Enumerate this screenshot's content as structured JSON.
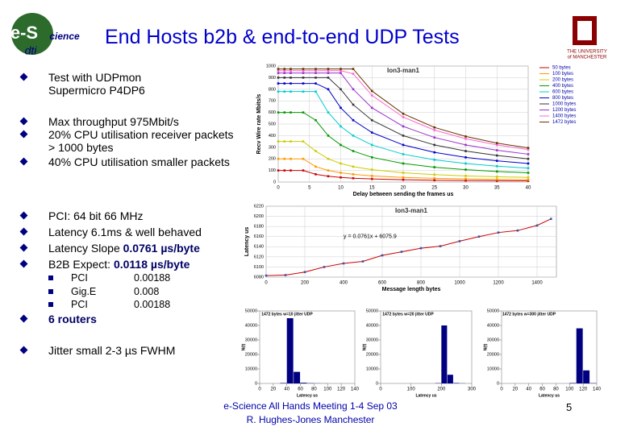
{
  "header": {
    "title": "End Hosts b2b & end-to-end UDP Tests",
    "logo_left": {
      "main": "e-S",
      "sub": "cience",
      "org": "dti"
    },
    "logo_right": [
      "THE UNIVERSITY",
      "of MANCHESTER"
    ]
  },
  "bullets": [
    {
      "parts": [
        {
          "text": "Test with UDPmon"
        },
        {
          "text": "Supermicro P4DP6",
          "break": true
        }
      ]
    },
    {
      "parts": [
        {
          "text": "Max throughput 975Mbit/s"
        }
      ]
    },
    {
      "parts": [
        {
          "text": "20% CPU utilisation receiver packets > 1000 bytes"
        }
      ]
    },
    {
      "parts": [
        {
          "text": "40% CPU utilisation smaller packets"
        }
      ]
    },
    {
      "parts": [
        {
          "text": "PCI: 64 bit 66 MHz"
        }
      ]
    },
    {
      "parts": [
        {
          "text": "Latency 6.1ms & well behaved"
        }
      ]
    },
    {
      "parts": [
        {
          "text": "Latency Slope "
        },
        {
          "text": "0.0761 µs/byte",
          "bold": true
        }
      ]
    },
    {
      "parts": [
        {
          "text": "B2B Expect: "
        },
        {
          "text": "0.0118 µs/byte",
          "bold": true
        }
      ]
    },
    {
      "parts": [
        {
          "text": "6 routers",
          "bold": true
        }
      ]
    },
    {
      "parts": [
        {
          "text": "Jitter small 2-3 µs FWHM"
        }
      ]
    }
  ],
  "sub_bullets": [
    {
      "label": "PCI",
      "value": 0.00188
    },
    {
      "label": "Gig.E",
      "value": 0.008
    },
    {
      "label": "PCI",
      "value": 0.00188
    }
  ],
  "footer": {
    "lines": [
      "e-Science All Hands Meeting 1-4 Sep 03",
      "R. Hughes-Jones  Manchester"
    ],
    "page": 5
  },
  "chart_data": [
    {
      "type": "line",
      "title": "Ion3-man1",
      "x_label": "Delay between sending the frames us",
      "y_label": "Recv Wire rate Mbits/s",
      "x": [
        0,
        1,
        2,
        4,
        6,
        8,
        10,
        12,
        15,
        20,
        25,
        30,
        35,
        40
      ],
      "xlim": [
        0,
        40
      ],
      "xticks": [
        0,
        5,
        10,
        15,
        20,
        25,
        30,
        35,
        40
      ],
      "ylim": [
        0,
        1000
      ],
      "yticks": [
        0,
        100,
        200,
        300,
        400,
        500,
        600,
        700,
        800,
        900,
        1000
      ],
      "grid": true,
      "legend": "right",
      "series": [
        {
          "name": "50 bytes",
          "color": "#cc0000",
          "values": [
            100,
            100,
            100,
            100,
            67,
            50,
            40,
            33,
            27,
            20,
            16,
            13,
            11,
            10
          ]
        },
        {
          "name": "100 bytes",
          "color": "#ff9900",
          "values": [
            200,
            200,
            200,
            200,
            133,
            100,
            80,
            67,
            53,
            40,
            32,
            27,
            23,
            20
          ]
        },
        {
          "name": "200 bytes",
          "color": "#cccc00",
          "values": [
            350,
            350,
            350,
            350,
            267,
            200,
            160,
            133,
            107,
            80,
            64,
            53,
            46,
            40
          ]
        },
        {
          "name": "400 bytes",
          "color": "#009900",
          "values": [
            600,
            600,
            600,
            600,
            533,
            400,
            320,
            267,
            213,
            160,
            128,
            107,
            91,
            80
          ]
        },
        {
          "name": "600 bytes",
          "color": "#00cccc",
          "values": [
            780,
            780,
            780,
            780,
            780,
            600,
            480,
            400,
            320,
            240,
            192,
            160,
            137,
            120
          ]
        },
        {
          "name": "800 bytes",
          "color": "#0000cc",
          "values": [
            850,
            850,
            850,
            850,
            850,
            800,
            640,
            533,
            427,
            320,
            256,
            213,
            183,
            160
          ]
        },
        {
          "name": "1000 bytes",
          "color": "#333333",
          "values": [
            900,
            900,
            900,
            900,
            900,
            900,
            800,
            667,
            533,
            400,
            320,
            267,
            229,
            200
          ]
        },
        {
          "name": "1200 bytes",
          "color": "#9933cc",
          "values": [
            940,
            940,
            940,
            940,
            940,
            940,
            940,
            800,
            640,
            480,
            384,
            320,
            274,
            240
          ]
        },
        {
          "name": "1400 bytes",
          "color": "#ff66cc",
          "values": [
            960,
            960,
            960,
            960,
            960,
            960,
            960,
            933,
            747,
            560,
            448,
            373,
            320,
            280
          ]
        },
        {
          "name": "1472 bytes",
          "color": "#663300",
          "values": [
            975,
            975,
            975,
            975,
            975,
            975,
            975,
            975,
            785,
            589,
            471,
            393,
            336,
            294
          ]
        }
      ]
    },
    {
      "type": "line",
      "title": "Ion3-man1",
      "x_label": "Message length bytes",
      "y_label": "Latency us",
      "annotation": "y = 0.0761x + 6075.9",
      "x": [
        0,
        100,
        200,
        300,
        400,
        500,
        600,
        700,
        800,
        900,
        1000,
        1100,
        1200,
        1300,
        1400,
        1472
      ],
      "xlim": [
        0,
        1500
      ],
      "xticks": [
        0,
        200,
        400,
        600,
        800,
        1000,
        1200,
        1400
      ],
      "ylim": [
        6080,
        6220
      ],
      "yticks": [
        6080,
        6100,
        6120,
        6140,
        6160,
        6180,
        6200,
        6220
      ],
      "grid": true,
      "series": [
        {
          "color": "#cc0000",
          "values": [
            6083,
            6084,
            6090,
            6100,
            6107,
            6111,
            6123,
            6130,
            6137,
            6141,
            6151,
            6160,
            6168,
            6172,
            6182,
            6195
          ]
        }
      ]
    },
    {
      "type": "histogram",
      "title": "1472 bytes w=10 jitter UDP",
      "x_label": "Latency us",
      "y_label": "N(t)",
      "color": "#000080",
      "bins": [
        0,
        10,
        20,
        30,
        40,
        50,
        60,
        70,
        80,
        90,
        100,
        110,
        120,
        130,
        140
      ],
      "values": [
        0,
        0,
        0,
        300,
        45000,
        8000,
        500,
        200,
        100,
        50,
        0,
        0,
        0,
        0
      ],
      "xlim": [
        0,
        140
      ],
      "xticks": [
        0,
        20,
        40,
        60,
        80,
        100,
        120,
        140
      ],
      "ylim": [
        0,
        50000
      ],
      "yticks": [
        0,
        10000,
        20000,
        30000,
        40000,
        50000
      ]
    },
    {
      "type": "histogram",
      "title": "1472 bytes w=20 jitter UDP",
      "x_label": "Latency us",
      "y_label": "N(t)",
      "color": "#000080",
      "bins": [
        0,
        20,
        40,
        60,
        80,
        100,
        120,
        140,
        160,
        180,
        200,
        220,
        240,
        260,
        280,
        300
      ],
      "values": [
        0,
        0,
        0,
        0,
        0,
        0,
        0,
        0,
        0,
        200,
        40000,
        6000,
        300,
        100,
        0
      ],
      "xlim": [
        0,
        300
      ],
      "xticks": [
        0,
        100,
        200,
        300
      ],
      "ylim": [
        0,
        50000
      ],
      "yticks": [
        0,
        10000,
        20000,
        30000,
        40000,
        50000
      ]
    },
    {
      "type": "histogram",
      "title": "1472 bytes w=300 jitter UDP",
      "x_label": "Latency us",
      "y_label": "N(t)",
      "color": "#000080",
      "bins": [
        0,
        10,
        20,
        30,
        40,
        50,
        60,
        70,
        80,
        90,
        100,
        110,
        120,
        130,
        140
      ],
      "values": [
        0,
        0,
        0,
        0,
        0,
        0,
        0,
        0,
        0,
        0,
        300,
        38000,
        9000,
        200
      ],
      "xlim": [
        0,
        140
      ],
      "xticks": [
        0,
        20,
        40,
        60,
        80,
        100,
        120,
        140
      ],
      "ylim": [
        0,
        50000
      ],
      "yticks": [
        0,
        10000,
        20000,
        30000,
        40000,
        50000
      ]
    }
  ]
}
